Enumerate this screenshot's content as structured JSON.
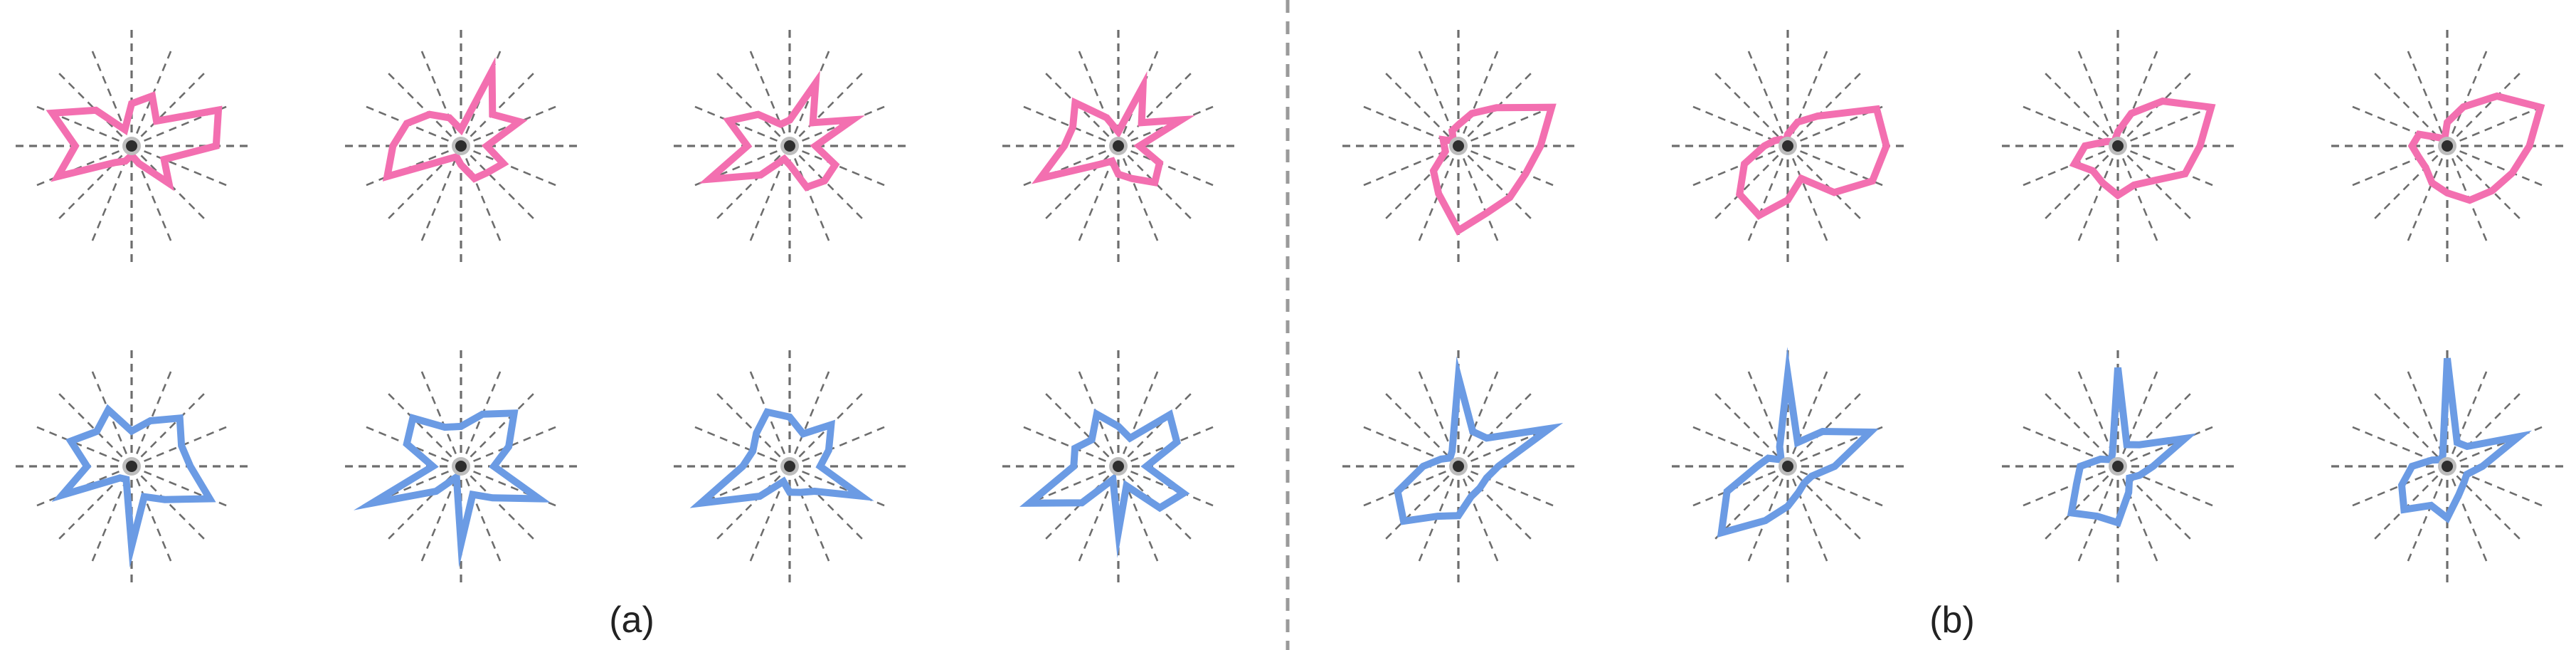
{
  "figure": {
    "caption_a": "(a)",
    "caption_b": "(b)"
  },
  "colors": {
    "pink": "#f36fb0",
    "blue": "#6b9be4",
    "spoke": "#6d6d6d",
    "divider": "#9a9a9a",
    "center": "#2e2e2e"
  },
  "spoke_count": 16,
  "groups": [
    {
      "id": "a",
      "glyphs": [
        {
          "row": "top",
          "color": "pink",
          "r": [
            0.36,
            0.46,
            0.3,
            0.8,
            0.72,
            0.3,
            0.45,
            0.16,
            0.08,
            0.14,
            0.2,
            0.68,
            0.48,
            0.73,
            0.43,
            0.15
          ]
        },
        {
          "row": "top",
          "color": "pink",
          "r": [
            0.14,
            0.69,
            0.38,
            0.54,
            0.22,
            0.39,
            0.32,
            0.3,
            0.16,
            0.1,
            0.16,
            0.68,
            0.58,
            0.5,
            0.38,
            0.26
          ]
        },
        {
          "row": "top",
          "color": "pink",
          "r": [
            0.22,
            0.58,
            0.28,
            0.58,
            0.22,
            0.42,
            0.42,
            0.38,
            0.16,
            0.12,
            0.35,
            0.74,
            0.36,
            0.56,
            0.38,
            0.2
          ]
        },
        {
          "row": "top",
          "color": "pink",
          "r": [
            0.12,
            0.55,
            0.28,
            0.58,
            0.18,
            0.38,
            0.44,
            0.3,
            0.24,
            0.14,
            0.22,
            0.72,
            0.46,
            0.42,
            0.52,
            0.26
          ]
        }
      ]
    },
    {
      "id": "a",
      "glyphs": [
        {
          "row": "bottom",
          "color": "blue",
          "r": [
            0.3,
            0.42,
            0.58,
            0.46,
            0.5,
            0.72,
            0.4,
            0.28,
            0.68,
            0.12,
            0.14,
            0.64,
            0.38,
            0.56,
            0.42,
            0.52
          ]
        },
        {
          "row": "bottom",
          "color": "blue",
          "r": [
            0.34,
            0.48,
            0.64,
            0.44,
            0.28,
            0.72,
            0.38,
            0.26,
            0.66,
            0.1,
            0.3,
            0.82,
            0.24,
            0.5,
            0.58,
            0.36
          ]
        },
        {
          "row": "bottom",
          "color": "blue",
          "r": [
            0.42,
            0.3,
            0.5,
            0.36,
            0.26,
            0.66,
            0.3,
            0.24,
            0.22,
            0.14,
            0.36,
            0.82,
            0.4,
            0.34,
            0.4,
            0.5
          ]
        },
        {
          "row": "bottom",
          "color": "blue",
          "r": [
            0.34,
            0.26,
            0.62,
            0.54,
            0.24,
            0.6,
            0.5,
            0.18,
            0.56,
            0.12,
            0.44,
            0.82,
            0.38,
            0.4,
            0.32,
            0.48
          ]
        }
      ]
    },
    {
      "id": "b",
      "glyphs": [
        {
          "row": "top",
          "color": "pink",
          "r": [
            0.18,
            0.3,
            0.46,
            0.86,
            0.7,
            0.62,
            0.62,
            0.62,
            0.72,
            0.44,
            0.3,
            0.12,
            0.12,
            0.14,
            0.06,
            0.14
          ]
        },
        {
          "row": "top",
          "color": "pink",
          "r": [
            0.1,
            0.22,
            0.36,
            0.82,
            0.84,
            0.78,
            0.56,
            0.3,
            0.46,
            0.64,
            0.58,
            0.4,
            0.2,
            0.12,
            0.08,
            0.04
          ]
        },
        {
          "row": "top",
          "color": "pink",
          "r": [
            0.12,
            0.3,
            0.54,
            0.86,
            0.7,
            0.62,
            0.42,
            0.36,
            0.42,
            0.34,
            0.3,
            0.4,
            0.28,
            0.1,
            0.05,
            0.06
          ]
        },
        {
          "row": "top",
          "color": "pink",
          "r": [
            0.2,
            0.36,
            0.6,
            0.86,
            0.7,
            0.6,
            0.54,
            0.5,
            0.4,
            0.34,
            0.26,
            0.26,
            0.3,
            0.26,
            0.1,
            0.06
          ]
        }
      ]
    },
    {
      "id": "b",
      "glyphs": [
        {
          "row": "bottom",
          "color": "blue",
          "r": [
            0.76,
            0.32,
            0.34,
            0.84,
            0.34,
            0.26,
            0.26,
            0.28,
            0.42,
            0.46,
            0.66,
            0.56,
            0.3,
            0.16,
            0.1,
            0.14
          ]
        },
        {
          "row": "bottom",
          "color": "blue",
          "r": [
            0.78,
            0.22,
            0.42,
            0.76,
            0.4,
            0.22,
            0.2,
            0.24,
            0.34,
            0.5,
            0.8,
            0.56,
            0.26,
            0.18,
            0.08,
            0.18
          ]
        },
        {
          "row": "bottom",
          "color": "blue",
          "r": [
            0.84,
            0.2,
            0.26,
            0.62,
            0.3,
            0.2,
            0.14,
            0.24,
            0.48,
            0.46,
            0.56,
            0.38,
            0.32,
            0.16,
            0.08,
            0.12
          ]
        },
        {
          "row": "bottom",
          "color": "blue",
          "r": [
            0.92,
            0.22,
            0.24,
            0.66,
            0.3,
            0.18,
            0.2,
            0.26,
            0.44,
            0.36,
            0.52,
            0.42,
            0.3,
            0.14,
            0.08,
            0.1
          ]
        }
      ]
    }
  ]
}
